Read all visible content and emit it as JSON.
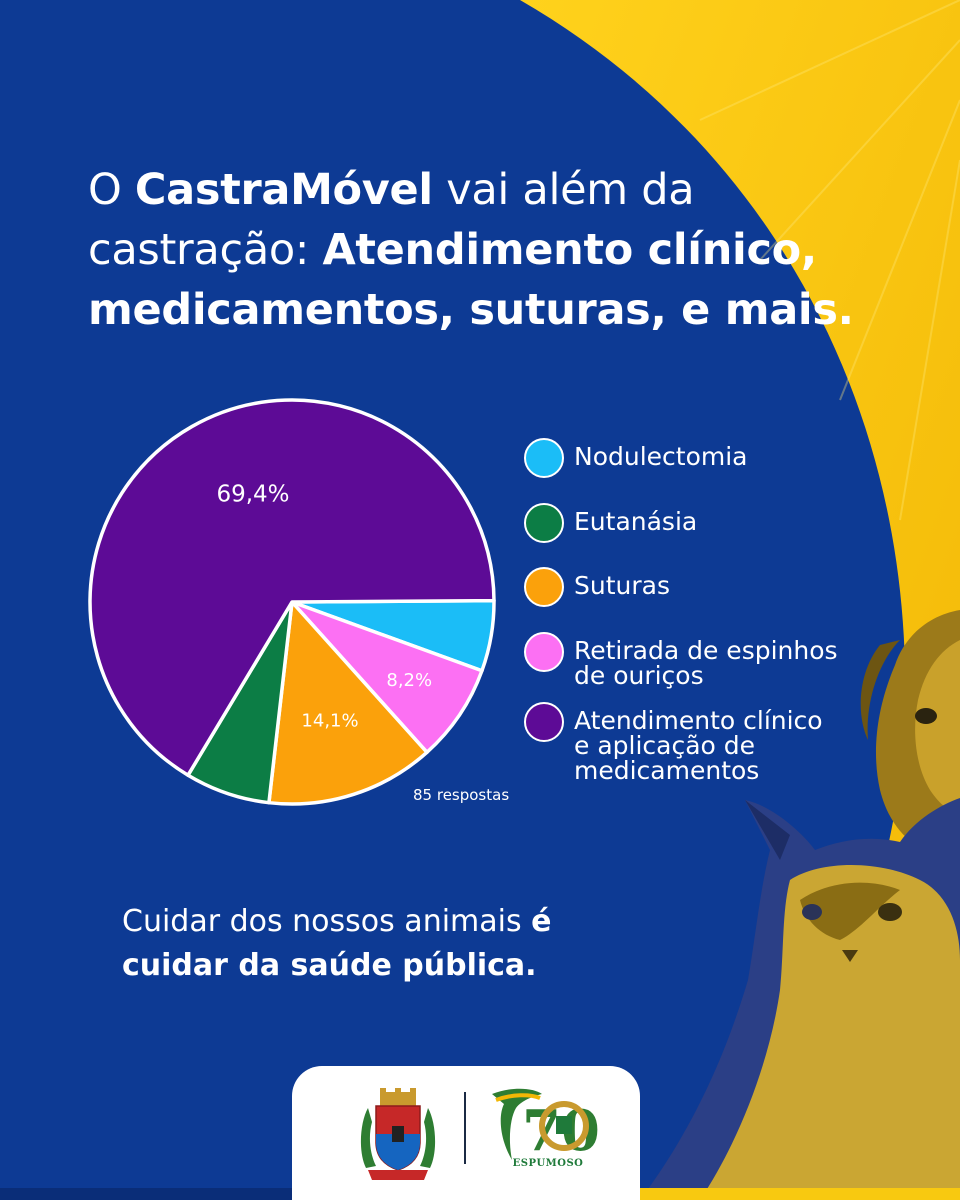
{
  "headline": {
    "p1": "O ",
    "brand": "CastraMóvel",
    "p2": " vai além da castração: ",
    "bold": "Atendimento clínico, medicamentos, suturas, e mais."
  },
  "chart_data": {
    "type": "pie",
    "title": "",
    "categories": [
      "Nodulectomia",
      "Eutanásia",
      "Suturas",
      "Retirada de espinhos de ouriços",
      "Atendimento clínico e aplicação de medicamentos"
    ],
    "values": [
      5.9,
      7.1,
      14.1,
      8.2,
      69.4
    ],
    "colors": [
      "#1bbdf7",
      "#0c7d45",
      "#fba10b",
      "#fc70f3",
      "#5d0b96"
    ],
    "data_labels": [
      "",
      "",
      "14,1%",
      "8,2%",
      "69,4%"
    ],
    "legend_position": "right",
    "note": "85 respostas"
  },
  "legend": {
    "items": [
      {
        "lines": [
          "Nodulectomia"
        ],
        "color": "#1bbdf7"
      },
      {
        "lines": [
          "Eutanásia"
        ],
        "color": "#0c7d45"
      },
      {
        "lines": [
          "Suturas"
        ],
        "color": "#fba10b"
      },
      {
        "lines": [
          "Retirada de espinhos",
          "de ouriços"
        ],
        "color": "#fc70f3"
      },
      {
        "lines": [
          "Atendimento clínico",
          "e aplicação de",
          "medicamentos"
        ],
        "color": "#5d0b96"
      }
    ]
  },
  "responses_label": "85 respostas",
  "tagline": {
    "p1": "Cuidar dos nossos animais ",
    "b1": "é",
    "b2": "cuidar da saúde pública."
  },
  "footer": {
    "anniversary_number": "70",
    "anniversary_word": "ESPUMOSO"
  },
  "colors": {
    "background": "#0d3a94",
    "accent_yellow": "#f8c910",
    "text": "#ffffff"
  }
}
